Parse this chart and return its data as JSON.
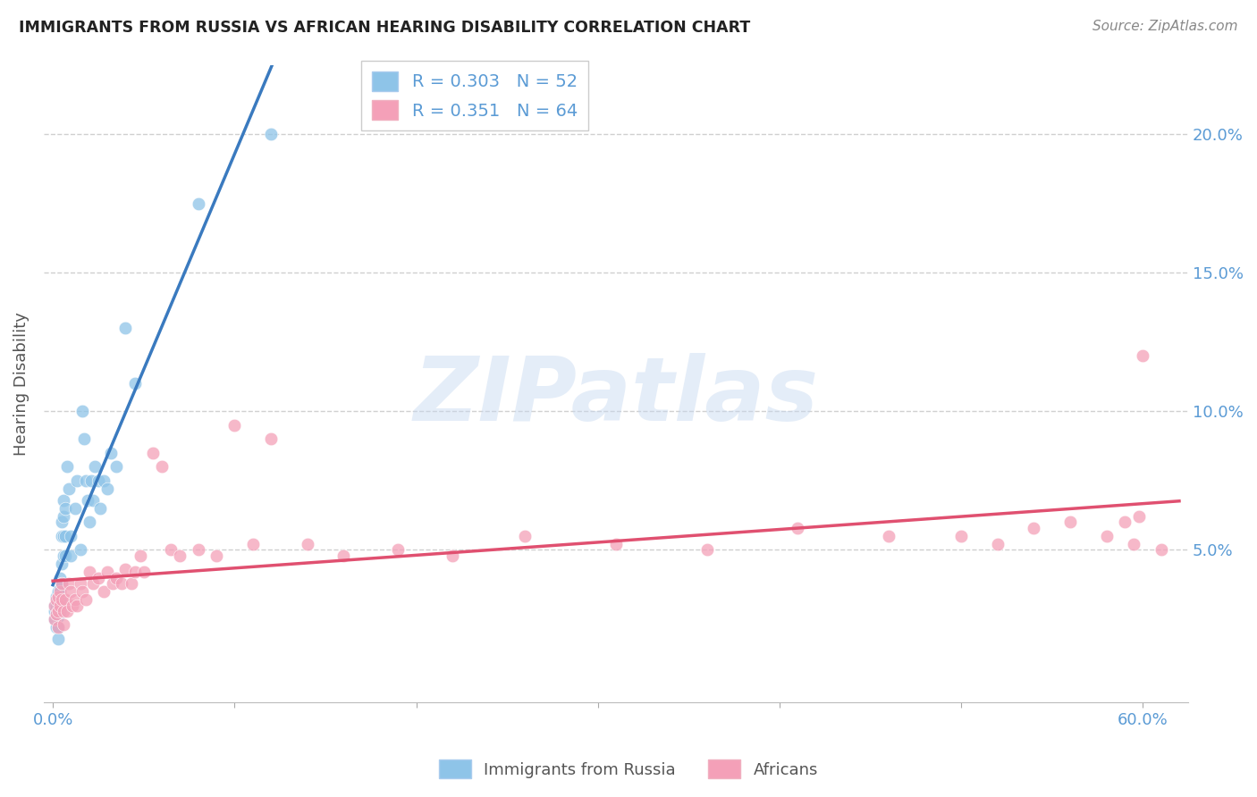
{
  "title": "IMMIGRANTS FROM RUSSIA VS AFRICAN HEARING DISABILITY CORRELATION CHART",
  "source": "Source: ZipAtlas.com",
  "ylabel": "Hearing Disability",
  "watermark": "ZIPatlas",
  "xlim": [
    -0.005,
    0.625
  ],
  "ylim": [
    -0.005,
    0.225
  ],
  "xticks": [
    0.0,
    0.1,
    0.2,
    0.3,
    0.4,
    0.5,
    0.6
  ],
  "xticklabels": [
    "0.0%",
    "",
    "",
    "",
    "",
    "",
    "60.0%"
  ],
  "yticks": [
    0.05,
    0.1,
    0.15,
    0.2
  ],
  "yticklabels": [
    "5.0%",
    "10.0%",
    "15.0%",
    "20.0%"
  ],
  "legend_r1": "R = 0.303",
  "legend_n1": "N = 52",
  "legend_r2": "R = 0.351",
  "legend_n2": "N = 64",
  "blue_color": "#8ec4e8",
  "blue_line_color": "#3a7abf",
  "pink_color": "#f4a0b8",
  "pink_line_color": "#e05070",
  "dash_color": "#aaaaaa",
  "axis_label_color": "#5b9bd5",
  "grid_color": "#d0d0d0",
  "title_color": "#222222",
  "source_color": "#888888",
  "russia_x": [
    0.001,
    0.001,
    0.001,
    0.002,
    0.002,
    0.002,
    0.002,
    0.003,
    0.003,
    0.003,
    0.003,
    0.003,
    0.004,
    0.004,
    0.004,
    0.004,
    0.005,
    0.005,
    0.005,
    0.005,
    0.006,
    0.006,
    0.006,
    0.006,
    0.007,
    0.007,
    0.007,
    0.008,
    0.009,
    0.01,
    0.01,
    0.012,
    0.013,
    0.015,
    0.016,
    0.017,
    0.018,
    0.019,
    0.02,
    0.021,
    0.022,
    0.023,
    0.025,
    0.026,
    0.028,
    0.03,
    0.032,
    0.035,
    0.04,
    0.045,
    0.08,
    0.12
  ],
  "russia_y": [
    0.03,
    0.028,
    0.025,
    0.033,
    0.03,
    0.027,
    0.022,
    0.035,
    0.03,
    0.026,
    0.022,
    0.018,
    0.04,
    0.036,
    0.032,
    0.028,
    0.06,
    0.055,
    0.045,
    0.038,
    0.068,
    0.062,
    0.055,
    0.048,
    0.065,
    0.055,
    0.048,
    0.08,
    0.072,
    0.055,
    0.048,
    0.065,
    0.075,
    0.05,
    0.1,
    0.09,
    0.075,
    0.068,
    0.06,
    0.075,
    0.068,
    0.08,
    0.075,
    0.065,
    0.075,
    0.072,
    0.085,
    0.08,
    0.13,
    0.11,
    0.175,
    0.2
  ],
  "african_x": [
    0.001,
    0.001,
    0.002,
    0.002,
    0.003,
    0.003,
    0.003,
    0.004,
    0.004,
    0.005,
    0.005,
    0.006,
    0.006,
    0.007,
    0.008,
    0.009,
    0.01,
    0.011,
    0.012,
    0.013,
    0.015,
    0.016,
    0.018,
    0.02,
    0.022,
    0.025,
    0.028,
    0.03,
    0.033,
    0.035,
    0.038,
    0.04,
    0.043,
    0.045,
    0.048,
    0.05,
    0.055,
    0.06,
    0.065,
    0.07,
    0.08,
    0.09,
    0.1,
    0.11,
    0.12,
    0.14,
    0.16,
    0.19,
    0.22,
    0.26,
    0.31,
    0.36,
    0.41,
    0.46,
    0.5,
    0.52,
    0.54,
    0.56,
    0.58,
    0.59,
    0.595,
    0.598,
    0.6,
    0.61
  ],
  "african_y": [
    0.03,
    0.025,
    0.032,
    0.027,
    0.033,
    0.028,
    0.022,
    0.035,
    0.03,
    0.038,
    0.032,
    0.028,
    0.023,
    0.032,
    0.028,
    0.038,
    0.035,
    0.03,
    0.032,
    0.03,
    0.038,
    0.035,
    0.032,
    0.042,
    0.038,
    0.04,
    0.035,
    0.042,
    0.038,
    0.04,
    0.038,
    0.043,
    0.038,
    0.042,
    0.048,
    0.042,
    0.085,
    0.08,
    0.05,
    0.048,
    0.05,
    0.048,
    0.095,
    0.052,
    0.09,
    0.052,
    0.048,
    0.05,
    0.048,
    0.055,
    0.052,
    0.05,
    0.058,
    0.055,
    0.055,
    0.052,
    0.058,
    0.06,
    0.055,
    0.06,
    0.052,
    0.062,
    0.12,
    0.05
  ]
}
